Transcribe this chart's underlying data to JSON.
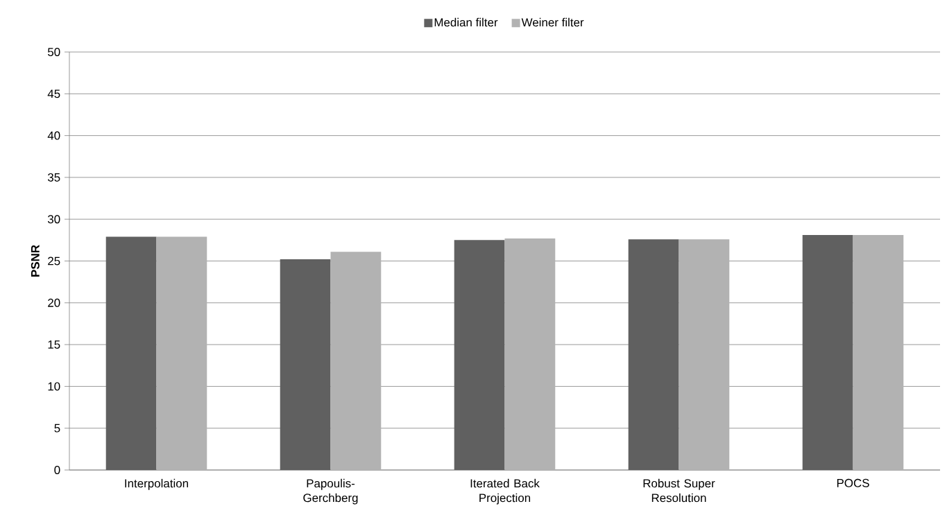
{
  "chart_data": {
    "type": "bar",
    "ylabel": "PSNR",
    "categories": [
      "Interpolation",
      "Papoulis-Gerchberg",
      "Iterated Back Projection",
      "Robust Super Resolution",
      "POCS"
    ],
    "series": [
      {
        "name": "Median filter",
        "color": "#606060",
        "values": [
          27.9,
          25.2,
          27.5,
          27.6,
          28.1
        ]
      },
      {
        "name": "Weiner filter",
        "color": "#b2b2b2",
        "values": [
          27.9,
          26.1,
          27.7,
          27.6,
          28.1
        ]
      }
    ],
    "ylim": [
      0,
      50
    ],
    "yticks": [
      0,
      5,
      10,
      15,
      20,
      25,
      30,
      35,
      40,
      45,
      50
    ],
    "grid": "y",
    "legend": "top"
  }
}
